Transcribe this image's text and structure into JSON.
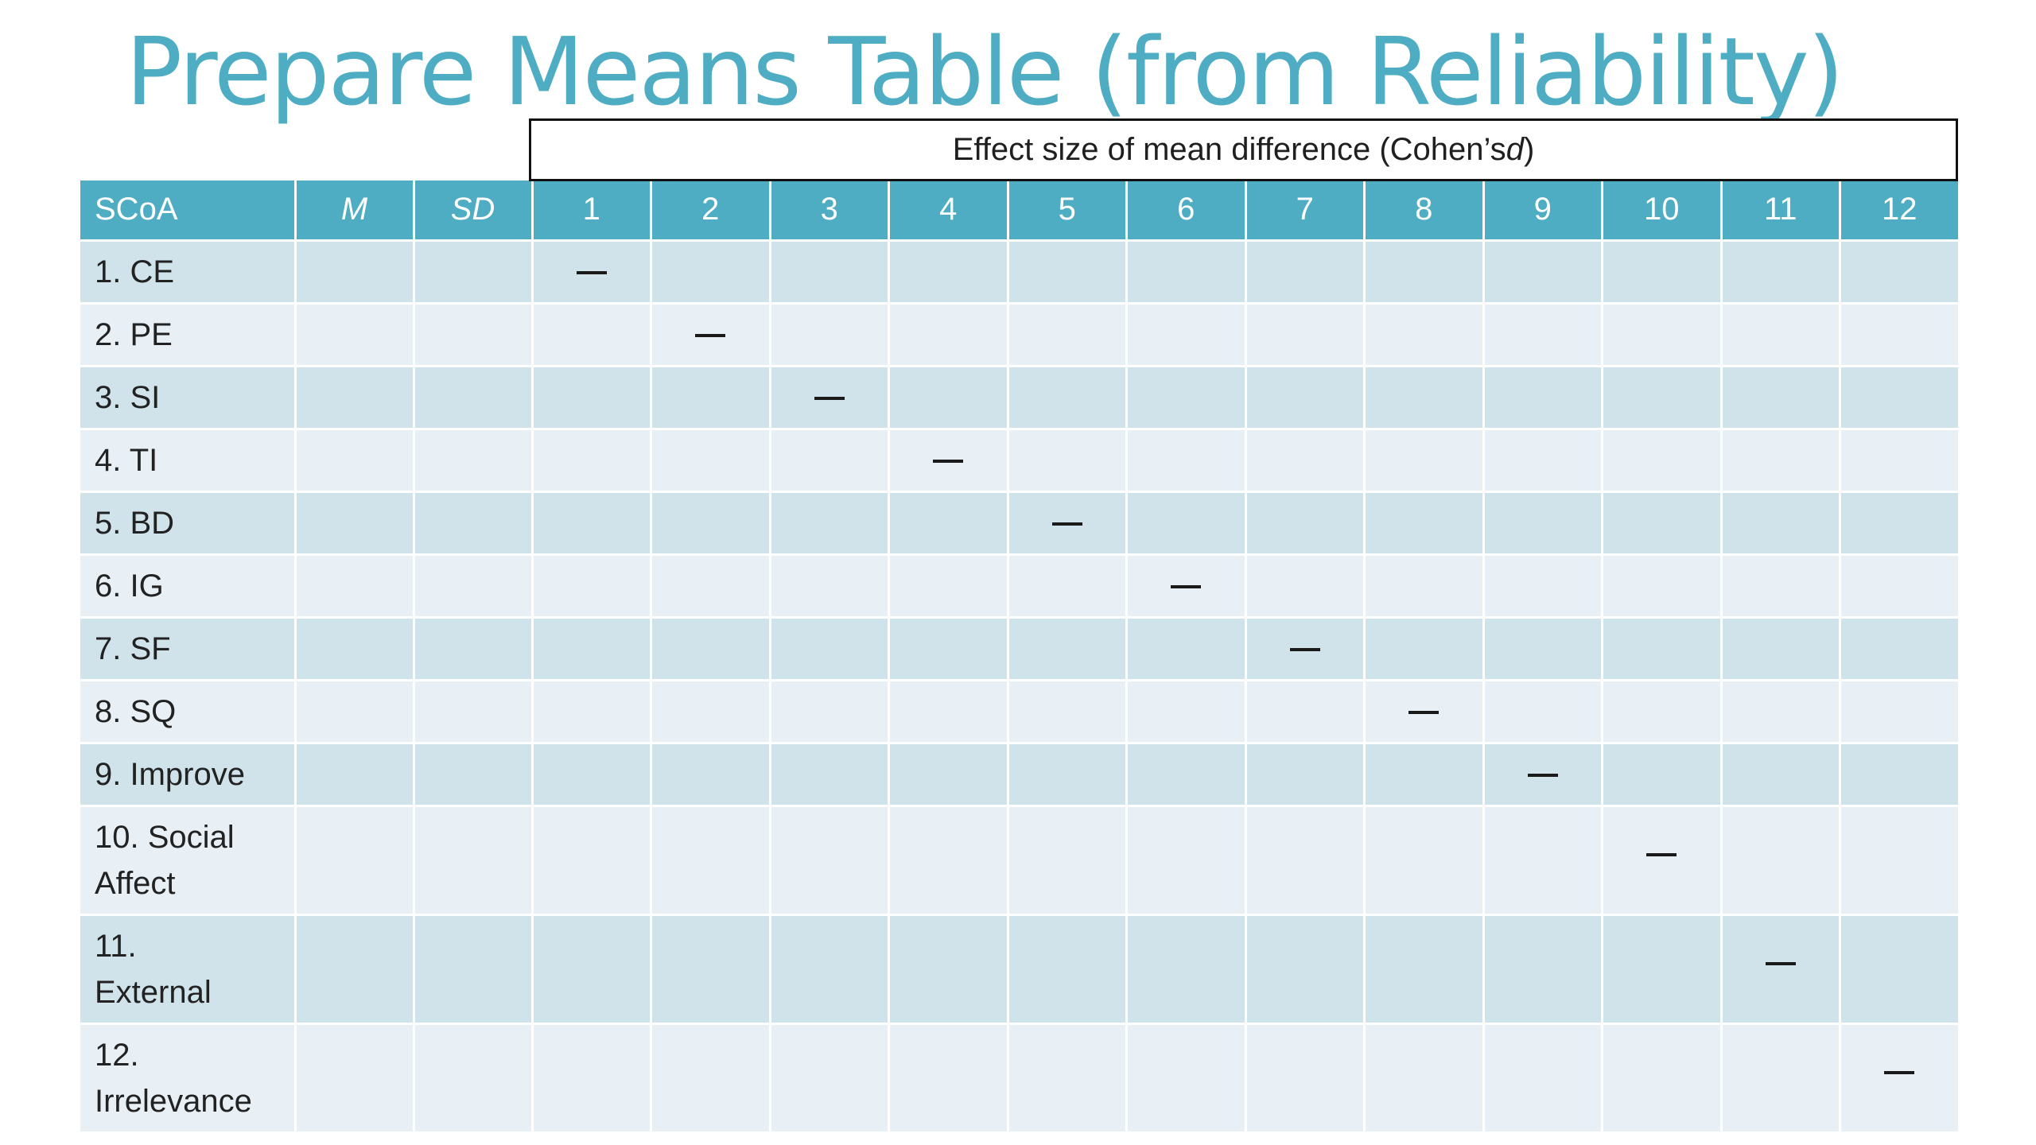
{
  "title": "Prepare Means Table (from Reliability)",
  "effect_header": {
    "text_before": "Effect size of mean difference (Cohen’s ",
    "italic": "d",
    "text_after": ")"
  },
  "columns": {
    "scoa": "SCoA",
    "m": "M",
    "sd": "SD",
    "numbers": [
      "1",
      "2",
      "3",
      "4",
      "5",
      "6",
      "7",
      "8",
      "9",
      "10",
      "11",
      "12"
    ]
  },
  "rows": [
    {
      "label_lines": [
        "1. CE"
      ],
      "dash_col": 1
    },
    {
      "label_lines": [
        "2. PE"
      ],
      "dash_col": 2
    },
    {
      "label_lines": [
        "3. SI"
      ],
      "dash_col": 3
    },
    {
      "label_lines": [
        "4. TI"
      ],
      "dash_col": 4
    },
    {
      "label_lines": [
        "5. BD"
      ],
      "dash_col": 5
    },
    {
      "label_lines": [
        "6. IG"
      ],
      "dash_col": 6
    },
    {
      "label_lines": [
        "7. SF"
      ],
      "dash_col": 7
    },
    {
      "label_lines": [
        "8. SQ"
      ],
      "dash_col": 8
    },
    {
      "label_lines": [
        "9. Improve"
      ],
      "dash_col": 9
    },
    {
      "label_lines": [
        "10. Social",
        "Affect"
      ],
      "dash_col": 10
    },
    {
      "label_lines": [
        "11.",
        "External"
      ],
      "dash_col": 11
    },
    {
      "label_lines": [
        "12.",
        "Irrelevance"
      ],
      "dash_col": 12
    }
  ],
  "colors": {
    "title": "#4eadc3",
    "header_bg": "#4eadc3",
    "row_dark": "#d0e3ea",
    "row_light": "#e8f0f5"
  }
}
